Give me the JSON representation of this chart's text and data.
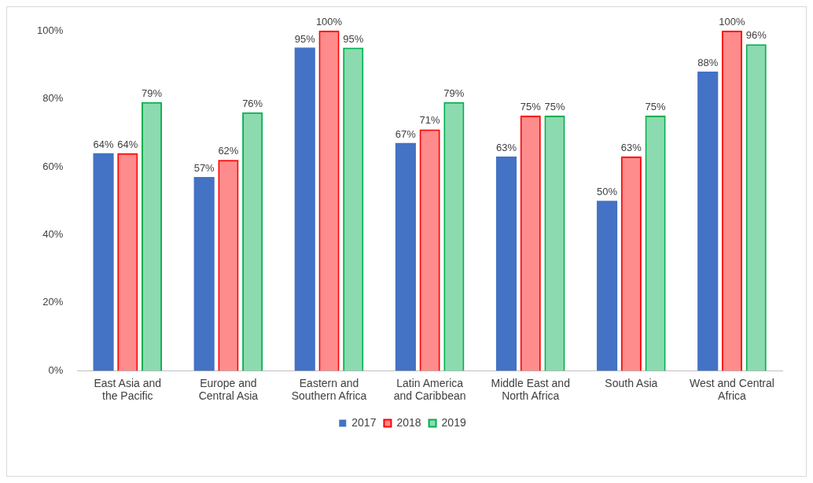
{
  "chart_data": {
    "type": "bar",
    "categories": [
      "East Asia and the Pacific",
      "Europe and Central Asia",
      "Eastern and Southern Africa",
      "Latin America and Caribbean",
      "Middle East and North Africa",
      "South Asia",
      "West and Central Africa"
    ],
    "series": [
      {
        "name": "2017",
        "color": "#4472c4",
        "values": [
          64,
          57,
          95,
          67,
          63,
          50,
          88
        ],
        "value_labels": [
          "64%",
          "57%",
          "95%",
          "67%",
          "63%",
          "50%",
          "88%"
        ]
      },
      {
        "name": "2018",
        "color": "#ff0000",
        "values": [
          64,
          62,
          100,
          71,
          75,
          63,
          100
        ],
        "value_labels": [
          "64%",
          "62%",
          "100%",
          "71%",
          "75%",
          "63%",
          "100%"
        ]
      },
      {
        "name": "2019",
        "color": "#00b050",
        "values": [
          79,
          76,
          95,
          79,
          75,
          75,
          96
        ],
        "value_labels": [
          "79%",
          "76%",
          "95%",
          "79%",
          "75%",
          "75%",
          "96%"
        ]
      }
    ],
    "ylim": [
      0,
      100
    ],
    "yticks": [
      {
        "value": 0,
        "label": "0%"
      },
      {
        "value": 20,
        "label": "20%"
      },
      {
        "value": 40,
        "label": "40%"
      },
      {
        "value": 60,
        "label": "60%"
      },
      {
        "value": 80,
        "label": "80%"
      },
      {
        "value": 100,
        "label": "100%"
      }
    ],
    "grid": false,
    "legend": "bottom"
  }
}
